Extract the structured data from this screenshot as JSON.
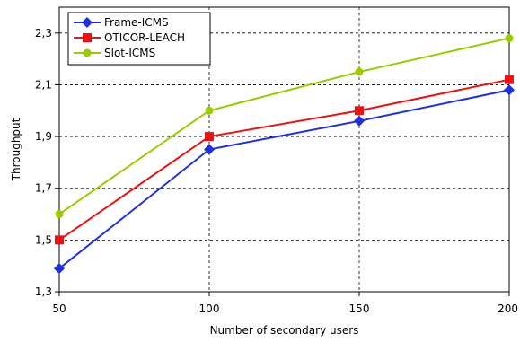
{
  "chart_data": {
    "type": "line",
    "title": "",
    "xlabel": "Number of secondary users",
    "ylabel": "Throughput",
    "x": [
      50,
      100,
      150,
      200
    ],
    "x_tick_labels": [
      "50",
      "100",
      "150",
      "200"
    ],
    "y_tick_values": [
      1.3,
      1.5,
      1.7,
      1.9,
      2.1,
      2.3
    ],
    "y_tick_labels": [
      "1,3",
      "1,5",
      "1,7",
      "1,9",
      "2,1",
      "2,3"
    ],
    "xlim": [
      50,
      200
    ],
    "ylim": [
      1.3,
      2.4
    ],
    "grid": "dashed, at x and y ticks",
    "legend_position": "top-left",
    "series": [
      {
        "name": "Frame-ICMS",
        "color": "#1f2fe0",
        "marker": "diamond",
        "values": [
          1.39,
          1.85,
          1.96,
          2.08
        ]
      },
      {
        "name": "OTICOR-LEACH",
        "color": "#ee1111",
        "marker": "square",
        "values": [
          1.5,
          1.9,
          2.0,
          2.12
        ]
      },
      {
        "name": "Slot-ICMS",
        "color": "#99cc00",
        "marker": "circle",
        "values": [
          1.6,
          2.0,
          2.15,
          2.28
        ]
      }
    ]
  }
}
